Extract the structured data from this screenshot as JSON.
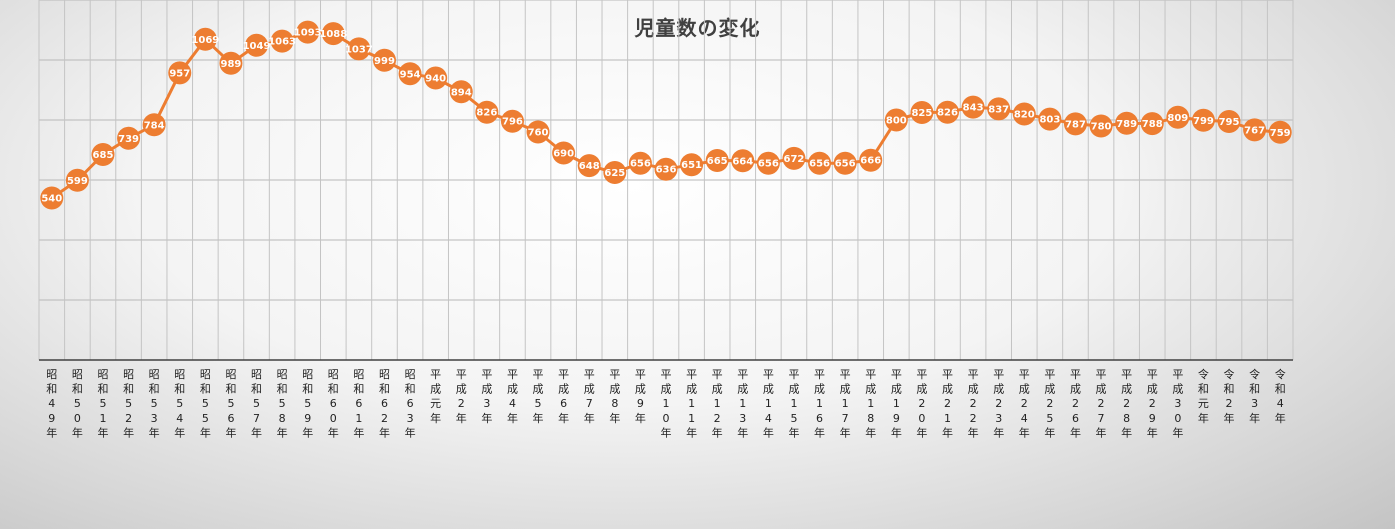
{
  "chart_data": {
    "type": "line",
    "title": "児童数の変化",
    "xlabel": "",
    "ylabel": "",
    "ylim": [
      0,
      1200
    ],
    "grid": true,
    "legend": "none",
    "line_color": "#ED7D31",
    "categories": [
      "昭和49年",
      "昭和50年",
      "昭和51年",
      "昭和52年",
      "昭和53年",
      "昭和54年",
      "昭和55年",
      "昭和56年",
      "昭和57年",
      "昭和58年",
      "昭和59年",
      "昭和60年",
      "昭和61年",
      "昭和62年",
      "昭和63年",
      "平成元年",
      "平成2年",
      "平成3年",
      "平成4年",
      "平成5年",
      "平成6年",
      "平成7年",
      "平成8年",
      "平成9年",
      "平成10年",
      "平成11年",
      "平成12年",
      "平成13年",
      "平成14年",
      "平成15年",
      "平成16年",
      "平成17年",
      "平成18年",
      "平成19年",
      "平成20年",
      "平成21年",
      "平成22年",
      "平成23年",
      "平成24年",
      "平成25年",
      "平成26年",
      "平成27年",
      "平成28年",
      "平成29年",
      "平成30年",
      "令和元年",
      "令和2年",
      "令和3年",
      "令和4年"
    ],
    "values": [
      540,
      599,
      685,
      739,
      784,
      957,
      1069,
      989,
      1049,
      1063,
      1093,
      1088,
      1037,
      999,
      954,
      940,
      894,
      826,
      796,
      760,
      690,
      648,
      625,
      656,
      636,
      651,
      665,
      664,
      656,
      672,
      656,
      656,
      666,
      800,
      825,
      826,
      843,
      837,
      820,
      803,
      787,
      780,
      789,
      788,
      809,
      799,
      795,
      767,
      759
    ]
  }
}
